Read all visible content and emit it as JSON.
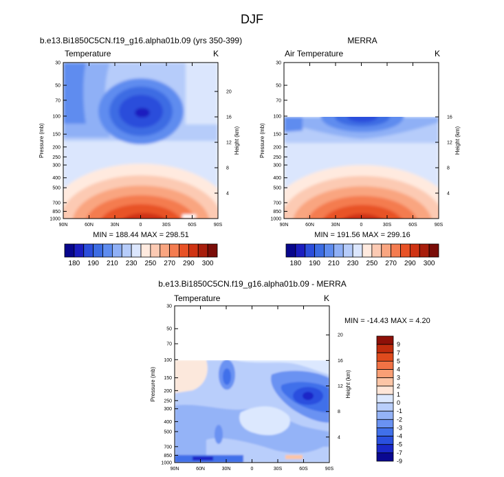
{
  "main_title": "DJF",
  "colors": {
    "temp": [
      "#08068c",
      "#1a1dbf",
      "#2b4ddb",
      "#3c6ce3",
      "#5e8cef",
      "#8fb0f6",
      "#b6ccfa",
      "#dbe6fd",
      "#ffeadf",
      "#fccab3",
      "#f9a580",
      "#f47c50",
      "#e85226",
      "#cf3313",
      "#a81e0c",
      "#7a0d08"
    ],
    "diff": [
      "#0a0891",
      "#1a28c8",
      "#2a50df",
      "#4070ea",
      "#6a92f2",
      "#94b3f7",
      "#b9cefb",
      "#dce8fe",
      "#ffe6d8",
      "#fcc5a6",
      "#f99f75",
      "#f17245",
      "#df4b1d",
      "#c02c0d",
      "#8e1008"
    ]
  },
  "chart_data": [
    {
      "type": "heatmap",
      "title": "b.e13.Bi1850C5CN.f19_g16.alpha01b.09 (yrs 350-399)",
      "left_label": "Temperature",
      "right_label": "K",
      "ylabel": "Pressure (mb)",
      "y2label": "Height (km)",
      "x_ticks": [
        "90N",
        "60N",
        "30N",
        "0",
        "30S",
        "60S",
        "90S"
      ],
      "x_tick_lat": [
        90,
        60,
        30,
        0,
        -30,
        -60,
        -90
      ],
      "y_ticks": [
        "30",
        "50",
        "70",
        "100",
        "150",
        "200",
        "250",
        "300",
        "400",
        "500",
        "700",
        "850",
        "1000"
      ],
      "y_tick_p": [
        30,
        50,
        70,
        100,
        150,
        200,
        250,
        300,
        400,
        500,
        700,
        850,
        1000
      ],
      "height_ticks": [
        "4",
        "8",
        "12",
        "16",
        "20"
      ],
      "height_tick_km": [
        4,
        8,
        12,
        16,
        20
      ],
      "ylim": [
        30,
        1000
      ],
      "xlim": [
        90,
        -90
      ],
      "min_text": "MIN = 188.44   MAX = 298.51",
      "min": 188.44,
      "max": 298.51,
      "levels": [
        180,
        185,
        190,
        200,
        210,
        220,
        230,
        240,
        250,
        260,
        270,
        280,
        290,
        295,
        300
      ],
      "colorbar_labels": [
        "180",
        "190",
        "210",
        "230",
        "250",
        "270",
        "290",
        "300"
      ]
    },
    {
      "type": "heatmap",
      "title": "MERRA",
      "left_label": "Air Temperature",
      "right_label": "K",
      "ylabel": "Pressure (mb)",
      "y2label": "Height (km)",
      "x_ticks": [
        "90N",
        "60N",
        "30N",
        "0",
        "30S",
        "60S",
        "90S"
      ],
      "x_tick_lat": [
        90,
        60,
        30,
        0,
        -30,
        -60,
        -90
      ],
      "y_ticks": [
        "30",
        "50",
        "70",
        "100",
        "150",
        "200",
        "250",
        "300",
        "400",
        "500",
        "700",
        "850",
        "1000"
      ],
      "y_tick_p": [
        30,
        50,
        70,
        100,
        150,
        200,
        250,
        300,
        400,
        500,
        700,
        850,
        1000
      ],
      "height_ticks": [
        "4",
        "8",
        "12",
        "16"
      ],
      "height_tick_km": [
        4,
        8,
        12,
        16
      ],
      "ylim": [
        30,
        1000
      ],
      "xlim": [
        90,
        -90
      ],
      "data_top_p": 100,
      "min_text": "MIN = 191.56   MAX = 299.16",
      "min": 191.56,
      "max": 299.16,
      "levels": [
        180,
        185,
        190,
        200,
        210,
        220,
        230,
        240,
        250,
        260,
        270,
        280,
        290,
        295,
        300
      ],
      "colorbar_labels": [
        "180",
        "190",
        "210",
        "230",
        "250",
        "270",
        "290",
        "300"
      ]
    },
    {
      "type": "heatmap",
      "title": "b.e13.Bi1850C5CN.f19_g16.alpha01b.09 - MERRA",
      "left_label": "Temperature",
      "right_label": "K",
      "ylabel": "Pressure (mb)",
      "y2label": "Height (km)",
      "x_ticks": [
        "90N",
        "60N",
        "30N",
        "0",
        "30S",
        "60S",
        "90S"
      ],
      "x_tick_lat": [
        90,
        60,
        30,
        0,
        -30,
        -60,
        -90
      ],
      "y_ticks": [
        "30",
        "50",
        "70",
        "100",
        "150",
        "200",
        "250",
        "300",
        "400",
        "500",
        "700",
        "850",
        "1000"
      ],
      "y_tick_p": [
        30,
        50,
        70,
        100,
        150,
        200,
        250,
        300,
        400,
        500,
        700,
        850,
        1000
      ],
      "height_ticks": [
        "4",
        "8",
        "12",
        "16",
        "20"
      ],
      "height_tick_km": [
        4,
        8,
        12,
        16,
        20
      ],
      "ylim": [
        30,
        1000
      ],
      "xlim": [
        90,
        -90
      ],
      "data_top_p": 100,
      "min_text": "MIN = -14.43  MAX =   4.20",
      "min": -14.43,
      "max": 4.2,
      "levels": [
        -9,
        -7,
        -5,
        -4,
        -3,
        -2,
        -1,
        0,
        1,
        2,
        3,
        4,
        5,
        7,
        9
      ],
      "colorbar_labels": [
        "9",
        "7",
        "5",
        "4",
        "3",
        "2",
        "1",
        "0",
        "-1",
        "-2",
        "-3",
        "-4",
        "-5",
        "-7",
        "-9"
      ]
    }
  ]
}
